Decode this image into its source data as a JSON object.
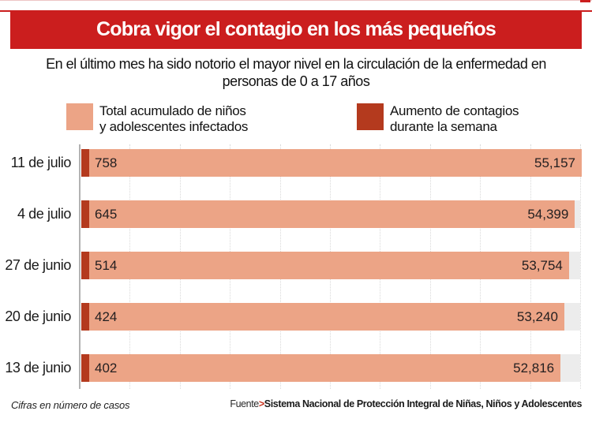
{
  "colors": {
    "banner": "#cb1e1e",
    "accent_dark": "#b43a1e",
    "bar_total": "#eca486",
    "track": "#ececec",
    "grid": "#d9d9d9",
    "axis": "#b2b2b2",
    "source_arrow": "#c8321e"
  },
  "header": {
    "title": "Cobra vigor el contagio en los más pequeños"
  },
  "subtitle": {
    "line1": "En el último mes ha sido notorio el mayor nivel en la circulación de la enfermedad en",
    "line2": "personas de 0 a 17 años"
  },
  "legend": {
    "items": [
      {
        "label_line1": "Total acumulado de niños",
        "label_line2": "y adolescentes infectados",
        "color": "#eca486"
      },
      {
        "label_line1": "Aumento de contagios",
        "label_line2": "durante la semana",
        "color": "#b43a1e"
      }
    ]
  },
  "chart_data": {
    "type": "bar",
    "orientation": "horizontal",
    "title": "Cobra vigor el contagio en los más pequeños",
    "categories": [
      "11 de julio",
      "4 de julio",
      "27 de junio",
      "20 de junio",
      "13 de junio"
    ],
    "series": [
      {
        "name": "Total acumulado de niños y adolescentes infectados",
        "color": "#eca486",
        "values": [
          55157,
          54399,
          53754,
          53240,
          52816
        ],
        "labels": [
          "55,157",
          "54,399",
          "53,754",
          "53,240",
          "52,816"
        ]
      },
      {
        "name": "Aumento de contagios durante la semana",
        "color": "#b43a1e",
        "values": [
          758,
          645,
          514,
          424,
          402
        ],
        "labels": [
          "758",
          "645",
          "514",
          "424",
          "402"
        ]
      }
    ],
    "xlim": [
      0,
      55157
    ],
    "grid": "vertical-dotted",
    "gridline_count": 10,
    "value_labels": "inside-bar",
    "legend_position": "top"
  },
  "footer": {
    "note": "Cifras en número de casos",
    "source_label": "Fuente",
    "source_arrow": ">",
    "source": "Sistema Nacional de Protección Integral de Niñas, Niños y Adolescentes"
  }
}
